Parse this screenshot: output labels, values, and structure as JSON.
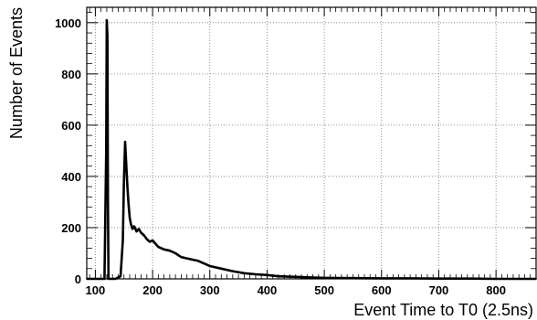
{
  "chart_data": {
    "type": "line",
    "title": "",
    "xlabel": "Event Time to T0 (2.5ns)",
    "ylabel": "Number of Events",
    "xlim": [
      85,
      870
    ],
    "ylim": [
      0,
      1060
    ],
    "x_ticks": [
      100,
      200,
      300,
      400,
      500,
      600,
      700,
      800
    ],
    "y_ticks": [
      0,
      200,
      400,
      600,
      800,
      1000
    ],
    "grid": true,
    "legend": "none",
    "series": [
      {
        "x": [
          85,
          116,
          119,
          120,
          121,
          122,
          123,
          126,
          135,
          144,
          148,
          150,
          152,
          154,
          156,
          158,
          160,
          162,
          165,
          168,
          172,
          176,
          180,
          185,
          190,
          195,
          200,
          210,
          220,
          230,
          240,
          250,
          260,
          270,
          280,
          290,
          300,
          320,
          340,
          360,
          380,
          400,
          420,
          450,
          480,
          500,
          550,
          600,
          650,
          700,
          750,
          800,
          870
        ],
        "y": [
          0,
          0,
          500,
          1010,
          950,
          300,
          0,
          0,
          0,
          10,
          150,
          380,
          535,
          450,
          360,
          290,
          240,
          215,
          195,
          205,
          185,
          195,
          180,
          170,
          155,
          145,
          150,
          125,
          115,
          110,
          100,
          85,
          80,
          75,
          70,
          60,
          50,
          40,
          30,
          22,
          18,
          15,
          10,
          8,
          5,
          4,
          3,
          2,
          2,
          1,
          1,
          0,
          0
        ]
      }
    ]
  }
}
